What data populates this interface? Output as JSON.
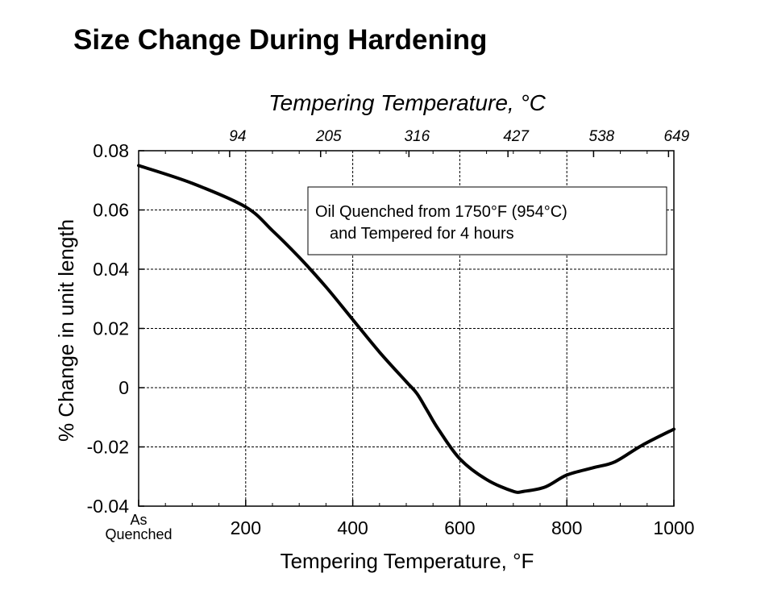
{
  "page": {
    "title": "Size Change During Hardening"
  },
  "chart_data": {
    "type": "line",
    "title": "",
    "xlabel": "Tempering Temperature, °F",
    "x2label": "Tempering Temperature, °C",
    "ylabel": "% Change in unit length",
    "xlim": [
      0,
      1000
    ],
    "ylim": [
      -0.04,
      0.08
    ],
    "grid": true,
    "x_ticks": [
      {
        "value": 0,
        "label": "As\nQuenched"
      },
      {
        "value": 200,
        "label": "200"
      },
      {
        "value": 400,
        "label": "400"
      },
      {
        "value": 600,
        "label": "600"
      },
      {
        "value": 800,
        "label": "800"
      },
      {
        "value": 1000,
        "label": "1000"
      }
    ],
    "x2_ticks": [
      {
        "value": 170,
        "label": "94"
      },
      {
        "value": 340,
        "label": "205"
      },
      {
        "value": 505,
        "label": "316"
      },
      {
        "value": 690,
        "label": "427"
      },
      {
        "value": 850,
        "label": "538"
      },
      {
        "value": 990,
        "label": "649"
      }
    ],
    "y_ticks": [
      {
        "value": 0.08,
        "label": "0.08"
      },
      {
        "value": 0.06,
        "label": "0.06"
      },
      {
        "value": 0.04,
        "label": "0.04"
      },
      {
        "value": 0.02,
        "label": "0.02"
      },
      {
        "value": 0,
        "label": "0"
      },
      {
        "value": -0.02,
        "label": "-0.02"
      },
      {
        "value": -0.04,
        "label": "-0.04"
      }
    ],
    "annotation": {
      "lines": [
        "Oil Quenched from 1750°F (954°C)",
        "and Tempered for 4 hours"
      ]
    },
    "series": [
      {
        "x": [
          0,
          100,
          200,
          250,
          300,
          350,
          400,
          450,
          500,
          520,
          540,
          560,
          600,
          650,
          700,
          720,
          760,
          800,
          850,
          890,
          940,
          1000
        ],
        "y": [
          0.075,
          0.069,
          0.061,
          0.053,
          0.044,
          0.034,
          0.023,
          0.012,
          0.002,
          -0.002,
          -0.008,
          -0.014,
          -0.024,
          -0.031,
          -0.035,
          -0.035,
          -0.0335,
          -0.0295,
          -0.027,
          -0.025,
          -0.0195,
          -0.014
        ]
      }
    ]
  }
}
